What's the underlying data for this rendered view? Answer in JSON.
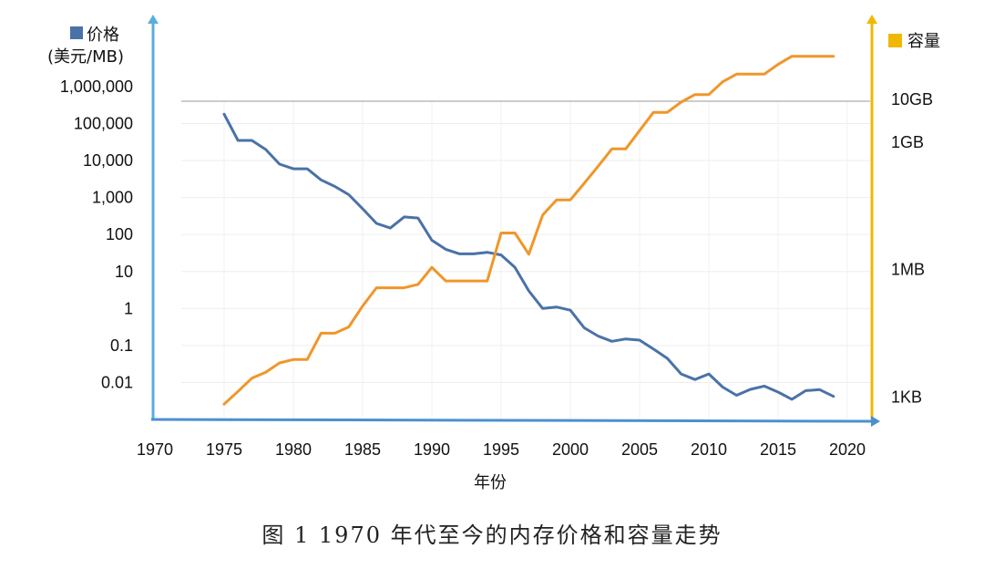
{
  "caption": "图 1 1970 年代至今的内存价格和容量走势",
  "chart_data": {
    "type": "line",
    "xlabel": "年份",
    "x_ticks": [
      1970,
      1975,
      1980,
      1985,
      1990,
      1995,
      2000,
      2005,
      2010,
      2015,
      2020
    ],
    "xlim": [
      1970,
      2020
    ],
    "left_axis": {
      "label_lines": [
        "价格",
        "(美元/MB)"
      ],
      "scale": "log",
      "ylim": [
        0.001,
        1000000
      ],
      "tick_labels": [
        "1,000,000",
        "100,000",
        "10,000",
        "1,000",
        "100",
        "10",
        "1",
        "0.1",
        "0.01"
      ],
      "tick_values": [
        1000000,
        100000,
        10000,
        1000,
        100,
        10,
        1,
        0.1,
        0.01
      ]
    },
    "right_axis": {
      "label": "容量",
      "tick_labels": [
        "10GB",
        "1GB",
        "1MB",
        "1KB"
      ],
      "tick_values_log10_bytes": [
        10,
        9,
        6,
        3
      ],
      "ylim_log10_bytes": [
        2.47,
        11.83
      ]
    },
    "grid": true,
    "colors": {
      "price": "#4a72a8",
      "capacity": "#f0962a",
      "left_axis": "#5aaede",
      "right_axis": "#f0b800",
      "bottom_axis": "#4a90d0"
    },
    "series": [
      {
        "name": "价格",
        "axis": "left",
        "x": [
          1975,
          1976,
          1977,
          1978,
          1979,
          1980,
          1981,
          1982,
          1983,
          1984,
          1985,
          1986,
          1987,
          1988,
          1989,
          1990,
          1991,
          1992,
          1993,
          1994,
          1995,
          1996,
          1997,
          1998,
          1999,
          2000,
          2001,
          2002,
          2003,
          2004,
          2005,
          2006,
          2007,
          2008,
          2009,
          2010,
          2011,
          2012,
          2013,
          2014,
          2015,
          2016,
          2017,
          2018,
          2019
        ],
        "y": [
          180000,
          35000,
          35000,
          20000,
          8000,
          6000,
          6000,
          3000,
          2000,
          1200,
          500,
          200,
          150,
          300,
          280,
          70,
          40,
          30,
          30,
          33,
          28,
          13,
          3,
          1,
          1.1,
          0.9,
          0.3,
          0.18,
          0.13,
          0.15,
          0.14,
          0.08,
          0.045,
          0.017,
          0.012,
          0.017,
          0.0075,
          0.0045,
          0.0065,
          0.008,
          0.0055,
          0.0035,
          0.006,
          0.0064,
          0.0042
        ]
      },
      {
        "name": "容量",
        "axis": "right",
        "x": [
          1975,
          1976,
          1977,
          1978,
          1979,
          1980,
          1981,
          1982,
          1983,
          1984,
          1985,
          1986,
          1987,
          1988,
          1989,
          1990,
          1991,
          1992,
          1993,
          1994,
          1995,
          1996,
          1997,
          1998,
          1999,
          2000,
          2001,
          2002,
          2003,
          2004,
          2005,
          2006,
          2007,
          2008,
          2009,
          2010,
          2011,
          2012,
          2013,
          2014,
          2015,
          2016,
          2017,
          2018,
          2019
        ],
        "y": [
          2.83,
          3.13,
          3.44,
          3.58,
          3.8,
          3.88,
          3.88,
          4.5,
          4.5,
          4.65,
          5.14,
          5.57,
          5.57,
          5.57,
          5.65,
          6.05,
          5.73,
          5.73,
          5.73,
          5.73,
          6.86,
          6.86,
          6.36,
          7.28,
          7.64,
          7.64,
          8.03,
          8.43,
          8.84,
          8.84,
          9.27,
          9.7,
          9.7,
          9.94,
          10.12,
          10.12,
          10.42,
          10.6,
          10.6,
          10.6,
          10.83,
          11.02,
          11.02,
          11.02,
          11.02
        ]
      }
    ]
  }
}
